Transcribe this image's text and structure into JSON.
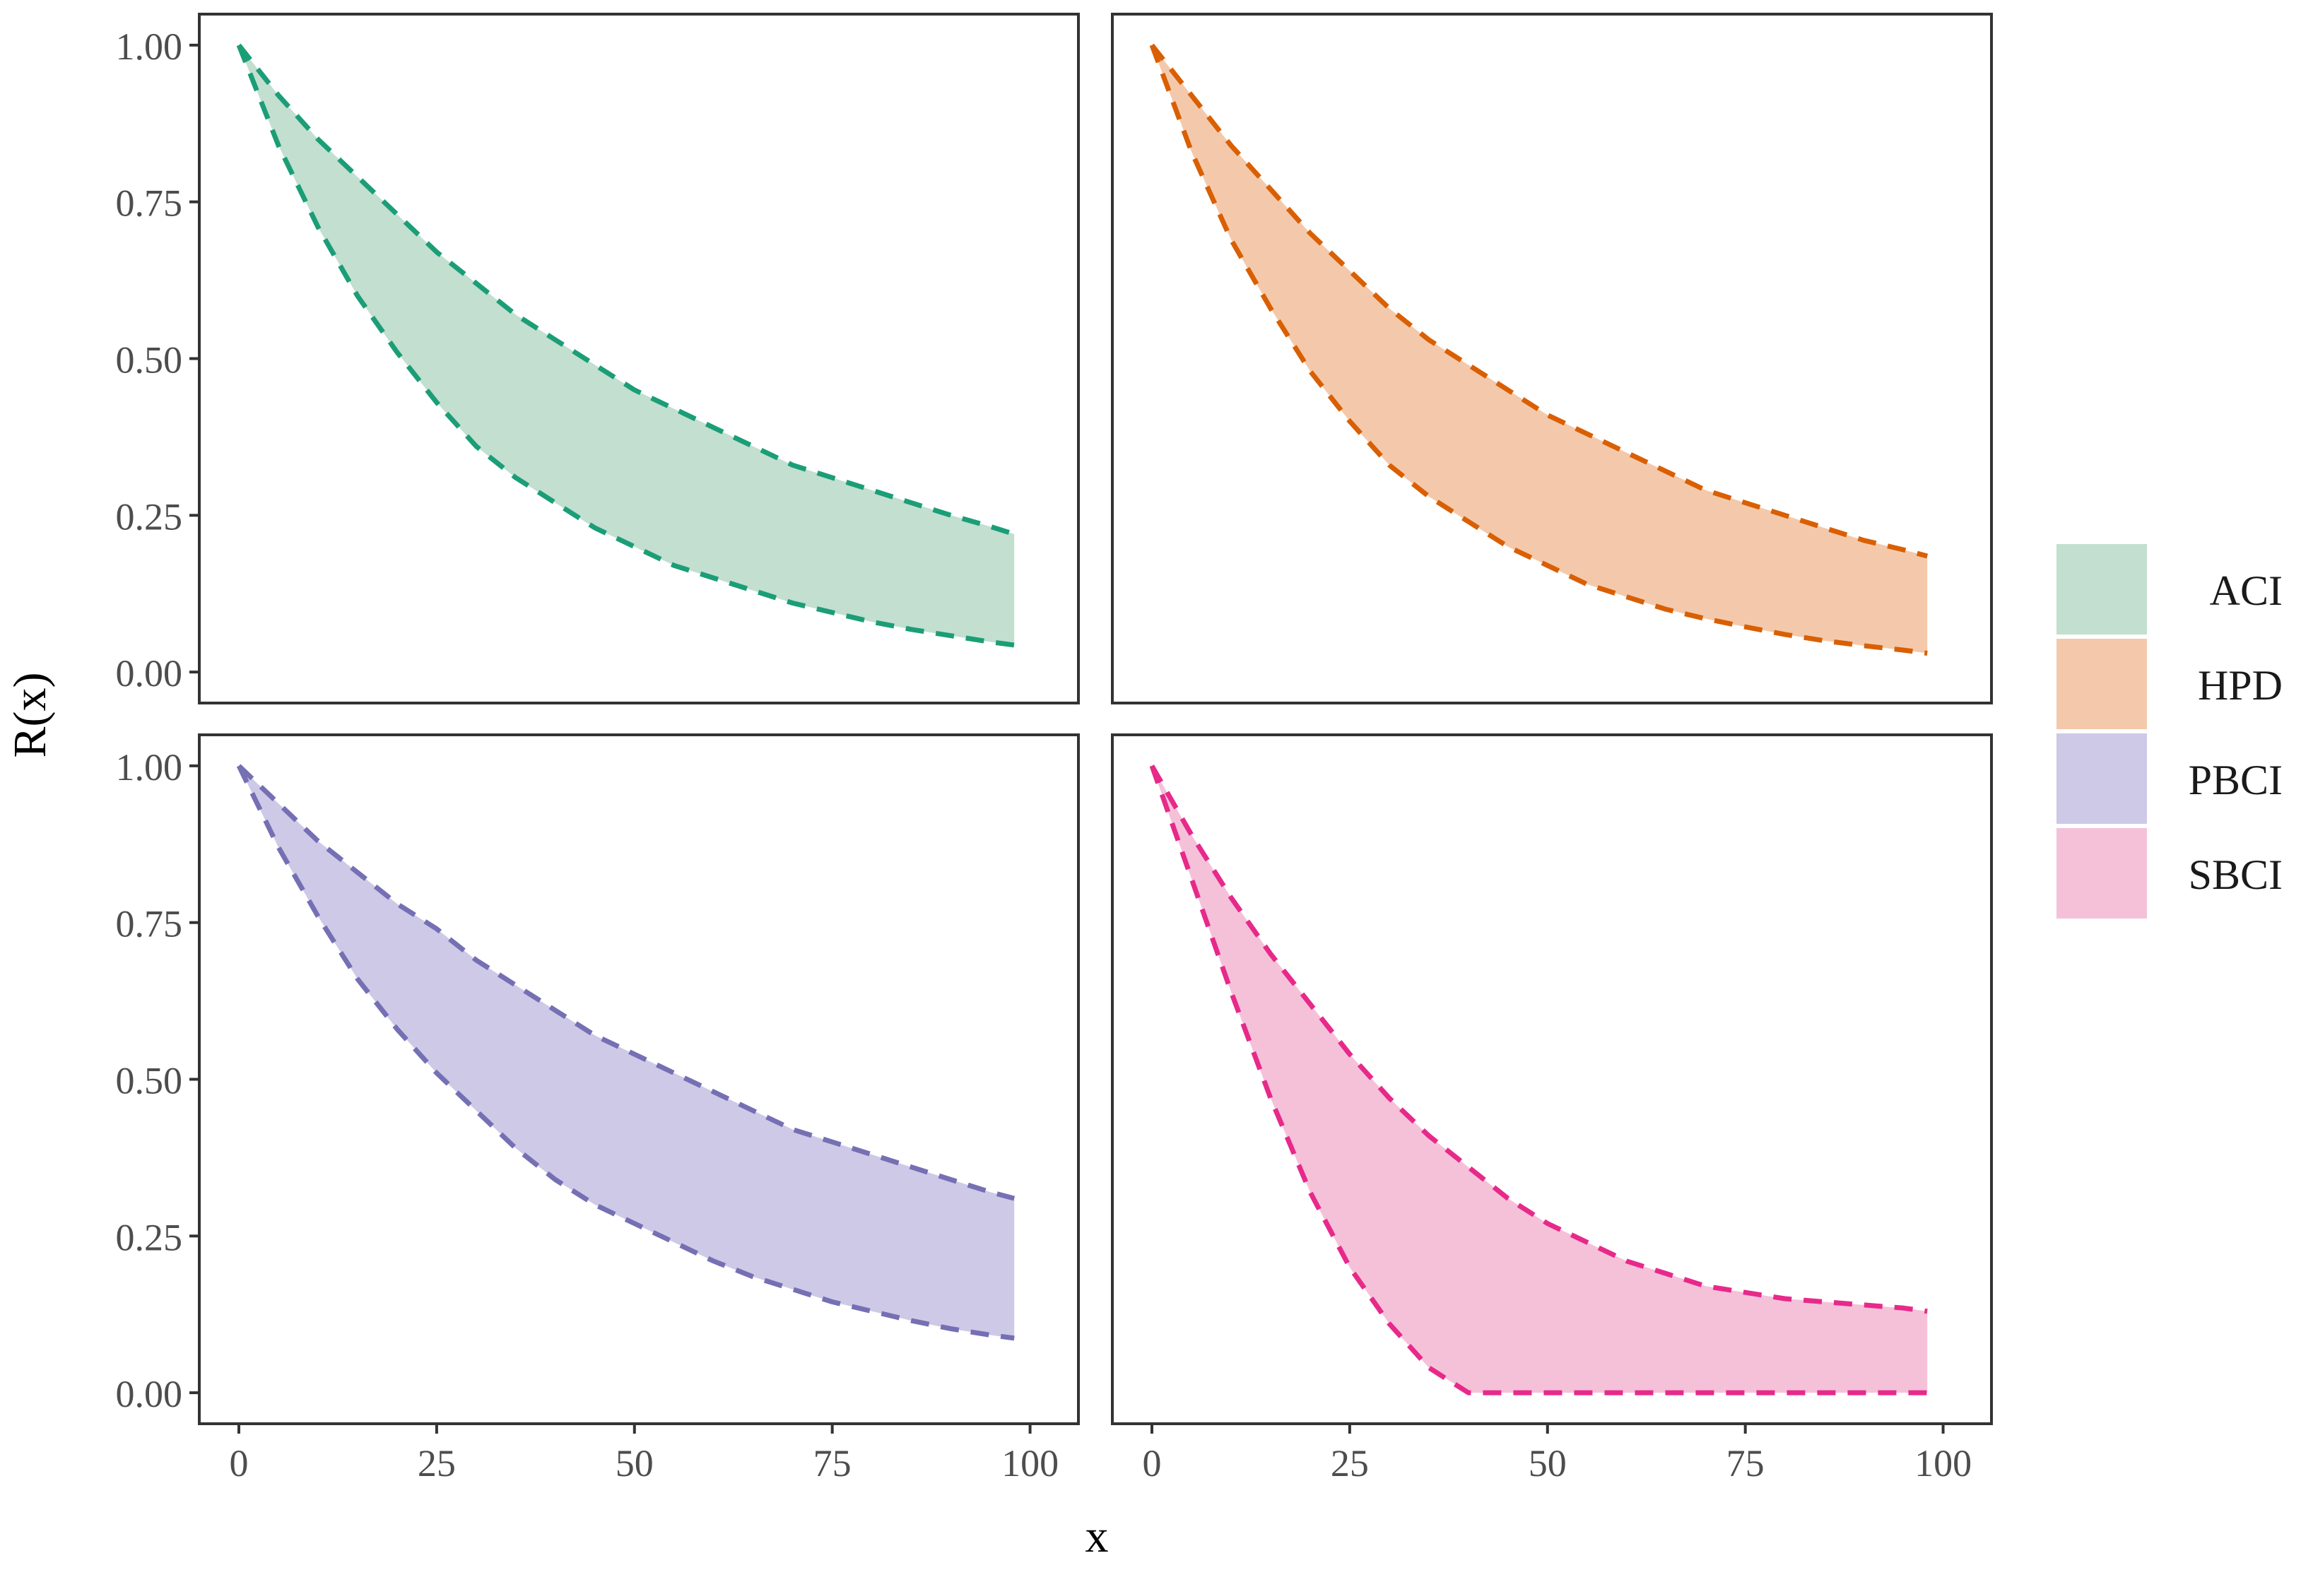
{
  "chart_data": {
    "type": "area",
    "facet_layout": "2x2",
    "xlabel": "x",
    "ylabel": "R(x)",
    "xlim": [
      0,
      100
    ],
    "ylim": [
      0,
      1
    ],
    "x_ticks": [
      0,
      25,
      50,
      75,
      100
    ],
    "x_tick_labels": [
      "0",
      "25",
      "50",
      "75",
      "100"
    ],
    "y_ticks": [
      0,
      0.25,
      0.5,
      0.75,
      1.0
    ],
    "y_tick_labels": [
      "0.00",
      "0.25",
      "0.50",
      "0.75",
      "1.00"
    ],
    "grid": false,
    "legend": {
      "placement": "right",
      "entries": [
        {
          "label": "ACI",
          "fill": "#c2dfd0"
        },
        {
          "label": "HPD",
          "fill": "#f4c9ab"
        },
        {
          "label": "PBCI",
          "fill": "#cdc9e7"
        },
        {
          "label": "SBCI",
          "fill": "#f5c1d9"
        }
      ]
    },
    "x": [
      0,
      5,
      10,
      15,
      20,
      25,
      30,
      35,
      40,
      45,
      50,
      55,
      60,
      65,
      70,
      75,
      80,
      85,
      90,
      95,
      98
    ],
    "panels": [
      {
        "name": "ACI",
        "color": "#1b9e77",
        "fill": "#c2dfd0",
        "upper": [
          1.0,
          0.92,
          0.85,
          0.79,
          0.73,
          0.67,
          0.62,
          0.57,
          0.53,
          0.49,
          0.45,
          0.42,
          0.39,
          0.36,
          0.33,
          0.31,
          0.29,
          0.27,
          0.25,
          0.232,
          0.22
        ],
        "lower": [
          1.0,
          0.84,
          0.71,
          0.6,
          0.51,
          0.43,
          0.36,
          0.31,
          0.27,
          0.23,
          0.2,
          0.17,
          0.15,
          0.13,
          0.11,
          0.095,
          0.08,
          0.068,
          0.058,
          0.048,
          0.043
        ]
      },
      {
        "name": "HPD",
        "color": "#d95f02",
        "fill": "#f4c9ab",
        "upper": [
          1.0,
          0.92,
          0.84,
          0.77,
          0.7,
          0.64,
          0.58,
          0.53,
          0.49,
          0.45,
          0.41,
          0.38,
          0.35,
          0.32,
          0.29,
          0.27,
          0.25,
          0.23,
          0.21,
          0.195,
          0.185
        ],
        "lower": [
          1.0,
          0.83,
          0.69,
          0.58,
          0.48,
          0.4,
          0.33,
          0.28,
          0.24,
          0.2,
          0.17,
          0.14,
          0.12,
          0.1,
          0.085,
          0.072,
          0.06,
          0.05,
          0.042,
          0.035,
          0.03
        ]
      },
      {
        "name": "PBCI",
        "color": "#7570b3",
        "fill": "#cdc9e7",
        "upper": [
          1.0,
          0.94,
          0.88,
          0.83,
          0.78,
          0.74,
          0.69,
          0.65,
          0.61,
          0.57,
          0.54,
          0.51,
          0.48,
          0.45,
          0.42,
          0.4,
          0.38,
          0.36,
          0.34,
          0.32,
          0.31
        ],
        "lower": [
          1.0,
          0.87,
          0.76,
          0.66,
          0.58,
          0.51,
          0.45,
          0.39,
          0.34,
          0.3,
          0.27,
          0.24,
          0.21,
          0.185,
          0.165,
          0.145,
          0.13,
          0.115,
          0.102,
          0.092,
          0.087
        ]
      },
      {
        "name": "SBCI",
        "color": "#e7298a",
        "fill": "#f5c1d9",
        "upper": [
          1.0,
          0.89,
          0.79,
          0.7,
          0.62,
          0.54,
          0.47,
          0.41,
          0.36,
          0.31,
          0.27,
          0.24,
          0.21,
          0.19,
          0.17,
          0.16,
          0.15,
          0.145,
          0.14,
          0.135,
          0.13
        ],
        "lower": [
          1.0,
          0.82,
          0.64,
          0.47,
          0.32,
          0.2,
          0.11,
          0.04,
          0.0,
          0.0,
          0.0,
          0.0,
          0.0,
          0.0,
          0.0,
          0.0,
          0.0,
          0.0,
          0.0,
          0.0,
          0.0
        ]
      }
    ]
  }
}
